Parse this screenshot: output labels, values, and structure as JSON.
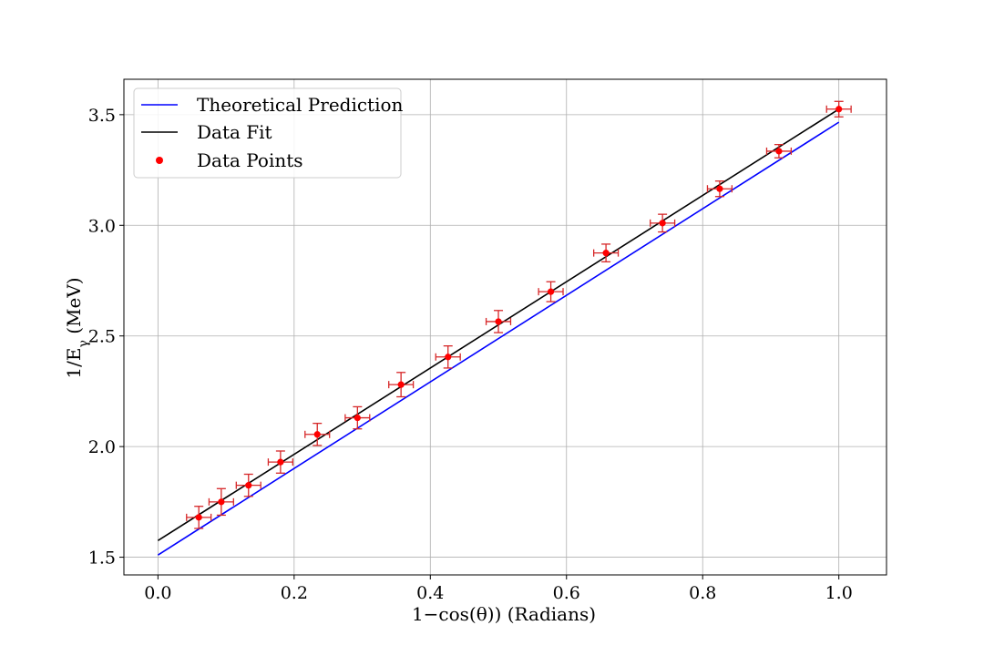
{
  "chart_data": {
    "type": "scatter",
    "xlabel": "1−cos(θ)) (Radians)",
    "ylabel": "1/E_γ (MeV)",
    "xlim": [
      -0.05,
      1.07
    ],
    "ylim": [
      1.42,
      3.66
    ],
    "xticks": [
      0.0,
      0.2,
      0.4,
      0.6,
      0.8,
      1.0
    ],
    "xtick_labels": [
      "0.0",
      "0.2",
      "0.4",
      "0.6",
      "0.8",
      "1.0"
    ],
    "yticks": [
      1.5,
      2.0,
      2.5,
      3.0,
      3.5
    ],
    "ytick_labels": [
      "1.5",
      "2.0",
      "2.5",
      "3.0",
      "3.5"
    ],
    "grid": true,
    "legend": {
      "position": "top-left",
      "entries": [
        "Theoretical Prediction",
        "Data Fit",
        "Data Points"
      ]
    },
    "series": [
      {
        "name": "Theoretical Prediction",
        "kind": "line",
        "color": "#0000ff",
        "x": [
          0.0,
          1.0
        ],
        "y": [
          1.51,
          3.466
        ]
      },
      {
        "name": "Data Fit",
        "kind": "line",
        "color": "#000000",
        "x": [
          0.0,
          1.0
        ],
        "y": [
          1.575,
          3.525
        ]
      },
      {
        "name": "Data Points",
        "kind": "scatter",
        "color": "#ff0000",
        "errorbar_color": "#d62728",
        "x": [
          0.06,
          0.093,
          0.133,
          0.18,
          0.234,
          0.293,
          0.357,
          0.426,
          0.5,
          0.577,
          0.658,
          0.741,
          0.825,
          0.912,
          1.0
        ],
        "y": [
          1.68,
          1.75,
          1.825,
          1.93,
          2.055,
          2.13,
          2.28,
          2.405,
          2.565,
          2.7,
          2.875,
          3.01,
          3.165,
          3.335,
          3.525
        ],
        "xerr": [
          0.018,
          0.018,
          0.018,
          0.018,
          0.018,
          0.018,
          0.018,
          0.018,
          0.018,
          0.018,
          0.018,
          0.018,
          0.018,
          0.018,
          0.018
        ],
        "yerr": [
          0.05,
          0.06,
          0.05,
          0.05,
          0.05,
          0.05,
          0.055,
          0.05,
          0.05,
          0.045,
          0.04,
          0.04,
          0.035,
          0.03,
          0.035
        ]
      }
    ]
  }
}
